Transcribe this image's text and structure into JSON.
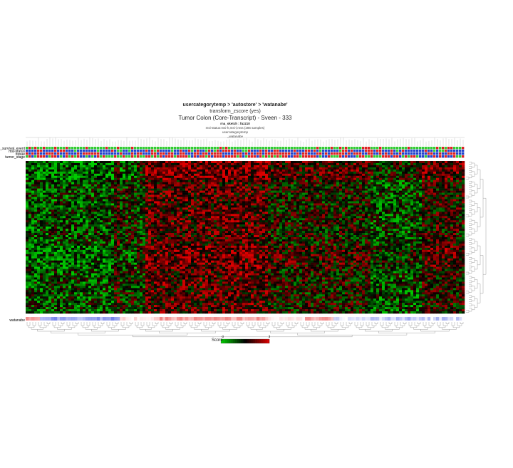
{
  "titles": {
    "main": "usercategorytemp > 'autostore' > 'watanabe'",
    "transform": "transform_zscore (yes)",
    "dataset": "Tumor Colon (Core-Transcript) - Sveen - 333",
    "sketch": "rna_sketch : fuzz10",
    "samples": "msi-status:msi-h,msi-l,mss (286 samples)",
    "category": "usercategorytemp",
    "subcategory": "_watanabe"
  },
  "tracks": {
    "labels": [
      "e_survival_event",
      "msi-status",
      "tissue",
      "tumor_stage"
    ],
    "bottom_label": "watanabe"
  },
  "legend": {
    "title": "Score",
    "min_label": "-3",
    "max_label": "3"
  },
  "colors": {
    "low": "#00cc00",
    "mid": "#000000",
    "high": "#dd0000",
    "track_blue": "#2244cc",
    "track_red": "#dd2222",
    "track_green": "#33cc33",
    "watanabe_blue": "#6f7fe8",
    "watanabe_red": "#f08080"
  },
  "chart_data": {
    "type": "heatmap",
    "title": "Tumor Colon (Core-Transcript) - Sveen - 333",
    "n_samples": 286,
    "zscore_range": [
      -3,
      3
    ],
    "colorbar_label": "Score",
    "annotation_tracks": [
      "e_survival_event",
      "msi-status",
      "tissue",
      "tumor_stage",
      "watanabe"
    ],
    "row_dendrogram": true,
    "column_dendrogram": true
  }
}
